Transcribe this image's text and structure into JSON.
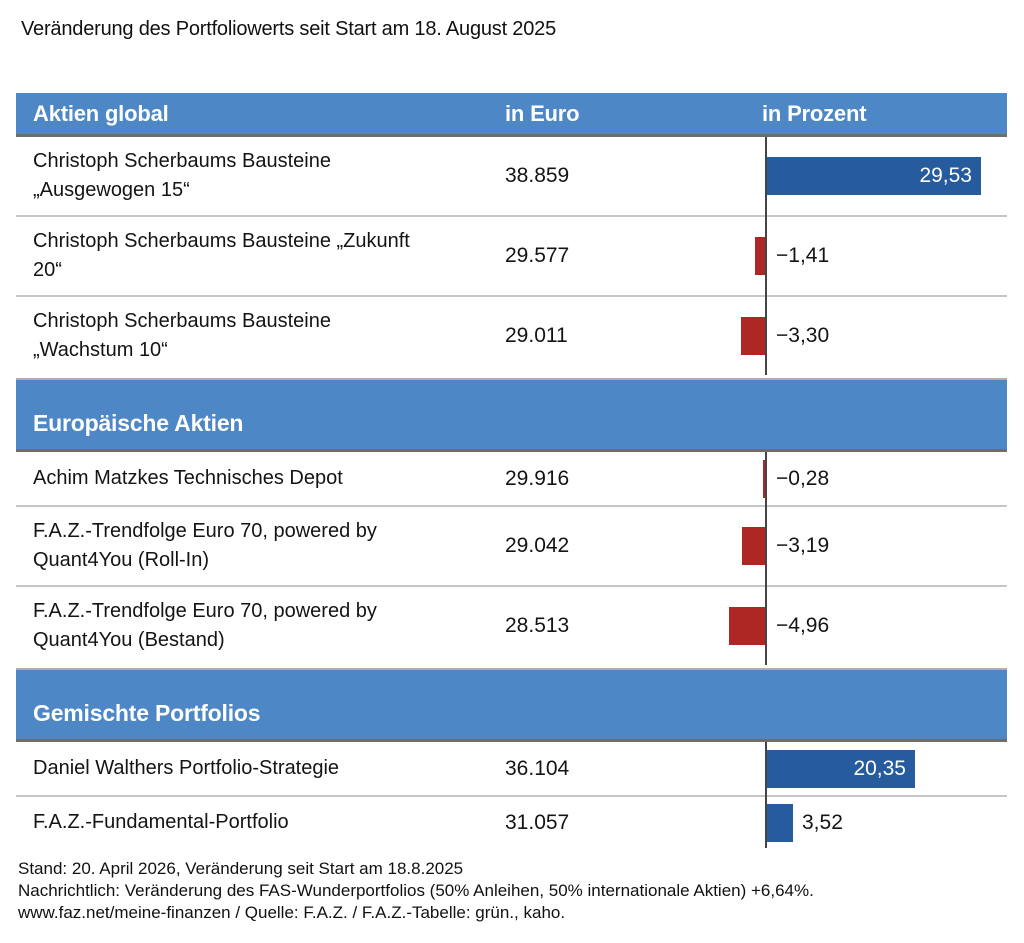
{
  "title": "Veränderung des Portfoliowerts seit Start am 18. August 2025",
  "columns": {
    "name": "Aktien global",
    "euro": "in Euro",
    "percent": "in Prozent"
  },
  "colors": {
    "header_bg": "#4d87c6",
    "positive_bar": "#265b9d",
    "negative_bar": "#ae2724",
    "axis": "#454545",
    "separator": "#c6c6c6"
  },
  "sections": [
    {
      "label": null,
      "rows": [
        {
          "name": "Christoph Scherbaums Bausteine „Ausgewogen 15“",
          "euro": "38.859",
          "percent_value": 29.53,
          "percent_label": "29,53"
        },
        {
          "name": "Christoph Scherbaums Bausteine „Zukunft 20“",
          "euro": "29.577",
          "percent_value": -1.41,
          "percent_label": "−1,41"
        },
        {
          "name": "Christoph Scherbaums Bausteine „Wachstum 10“",
          "euro": "29.011",
          "percent_value": -3.3,
          "percent_label": "−3,30"
        }
      ]
    },
    {
      "label": "Europäische Aktien",
      "rows": [
        {
          "name": "Achim Matzkes Technisches Depot",
          "euro": "29.916",
          "percent_value": -0.28,
          "percent_label": "−0,28"
        },
        {
          "name": "F.A.Z.-Trendfolge Euro 70, powered by Quant4You (Roll-In)",
          "euro": "29.042",
          "percent_value": -3.19,
          "percent_label": "−3,19"
        },
        {
          "name": "F.A.Z.-Trendfolge Euro 70, powered by Quant4You (Bestand)",
          "euro": "28.513",
          "percent_value": -4.96,
          "percent_label": "−4,96"
        }
      ]
    },
    {
      "label": "Gemischte Portfolios",
      "rows": [
        {
          "name": "Daniel Walthers Portfolio-Strategie",
          "euro": "36.104",
          "percent_value": 20.35,
          "percent_label": "20,35"
        },
        {
          "name": "F.A.Z.-Fundamental-Portfolio",
          "euro": "31.057",
          "percent_value": 3.52,
          "percent_label": "3,52"
        }
      ]
    }
  ],
  "footer": {
    "line1": "Stand: 20. April 2026, Veränderung seit Start am 18.8.2025",
    "line2": "Nachrichtlich: Veränderung des FAS-Wunderportfolios (50% Anleihen, 50% internationale Aktien)  +6,64%.",
    "line3": "www.faz.net/meine-finanzen / Quelle: F.A.Z. / F.A.Z.-Tabelle: grün., kaho."
  },
  "chart_data": {
    "type": "bar",
    "orientation": "horizontal",
    "title": "Veränderung des Portfoliowerts seit Start am 18. August 2025",
    "categories": [
      "Christoph Scherbaums Bausteine „Ausgewogen 15“",
      "Christoph Scherbaums Bausteine „Zukunft 20“",
      "Christoph Scherbaums Bausteine „Wachstum 10“",
      "Achim Matzkes Technisches Depot",
      "F.A.Z.-Trendfolge Euro 70, powered by Quant4You (Roll-In)",
      "F.A.Z.-Trendfolge Euro 70, powered by Quant4You (Bestand)",
      "Daniel Walthers Portfolio-Strategie",
      "F.A.Z.-Fundamental-Portfolio"
    ],
    "series": [
      {
        "name": "in Euro",
        "values": [
          38859,
          29577,
          29011,
          29916,
          29042,
          28513,
          36104,
          31057
        ]
      },
      {
        "name": "in Prozent",
        "values": [
          29.53,
          -1.41,
          -3.3,
          -0.28,
          -3.19,
          -4.96,
          20.35,
          3.52
        ]
      }
    ],
    "groups": [
      {
        "label": "Aktien global",
        "category_indexes": [
          0,
          1,
          2
        ]
      },
      {
        "label": "Europäische Aktien",
        "category_indexes": [
          3,
          4,
          5
        ]
      },
      {
        "label": "Gemischte Portfolios",
        "category_indexes": [
          6,
          7
        ]
      }
    ],
    "xlim": [
      -5,
      30
    ],
    "grid": false,
    "legend_position": "none",
    "bar_colors": {
      "positive": "#265b9d",
      "negative": "#ae2724"
    }
  }
}
